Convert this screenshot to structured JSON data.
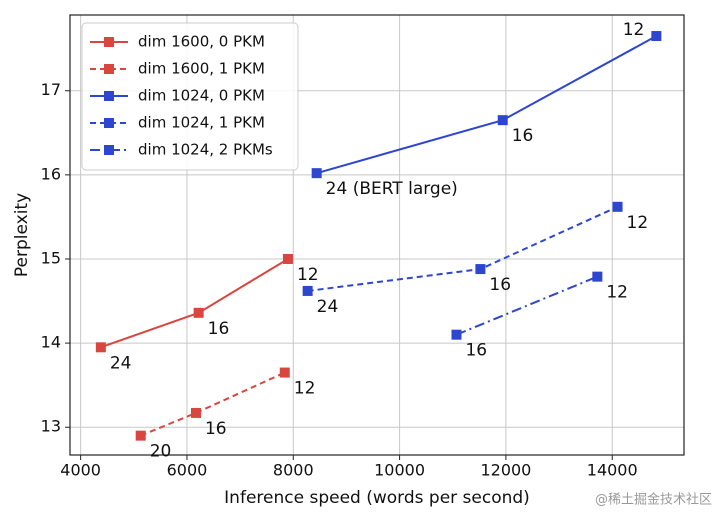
{
  "chart_data": {
    "type": "line",
    "x_label": "Inference speed (words per second)",
    "y_label": "Perplexity",
    "xlim": [
      3800,
      15350
    ],
    "ylim": [
      12.67,
      17.9
    ],
    "xticks": [
      4000,
      6000,
      8000,
      10000,
      12000,
      14000
    ],
    "yticks": [
      13,
      14,
      15,
      16,
      17
    ],
    "grid": true,
    "legend": "upper left",
    "series": [
      {
        "name": "dim 1600, 0 PKM",
        "color": "#d9463f",
        "linestyle": "solid",
        "x": [
          4380,
          6220,
          7900
        ],
        "values": [
          13.95,
          14.36,
          15.0
        ],
        "labels": [
          "24",
          "16",
          "12"
        ]
      },
      {
        "name": "dim 1600, 1 PKM",
        "color": "#d9463f",
        "linestyle": "dashed",
        "x": [
          5130,
          6170,
          7840
        ],
        "values": [
          12.9,
          13.17,
          13.65
        ],
        "labels": [
          "20",
          "16",
          "12"
        ]
      },
      {
        "name": "dim 1024, 0 PKM",
        "color": "#2d46d0",
        "linestyle": "solid",
        "x": [
          8440,
          11940,
          14830
        ],
        "values": [
          16.02,
          16.65,
          17.65
        ],
        "labels": [
          "24 (BERT large)",
          "16",
          "12"
        ]
      },
      {
        "name": "dim 1024, 1 PKM",
        "color": "#2d46d0",
        "linestyle": "dashed",
        "x": [
          8270,
          11520,
          14100
        ],
        "values": [
          14.62,
          14.88,
          15.62
        ],
        "labels": [
          "24",
          "16",
          "12"
        ]
      },
      {
        "name": "dim 1024, 2 PKMs",
        "color": "#2d46d0",
        "linestyle": "dashdot",
        "x": [
          11070,
          13720
        ],
        "values": [
          14.1,
          14.79
        ],
        "labels": [
          "16",
          "12"
        ]
      }
    ],
    "watermark": "@稀土掘金技术社区"
  }
}
